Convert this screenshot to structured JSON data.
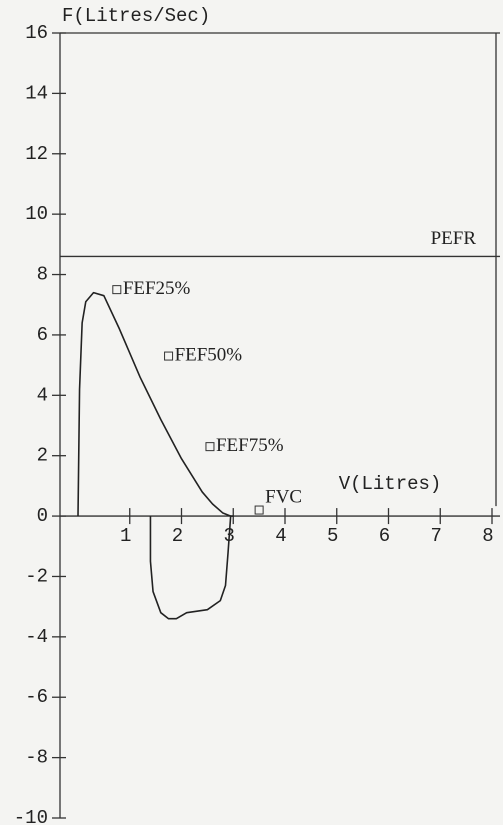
{
  "chart_data": {
    "type": "line",
    "y_label": "F(Litres/Sec)",
    "x_label": "V(Litres)",
    "x": [
      0,
      0.03,
      0.08,
      0.15,
      0.3,
      0.5,
      0.8,
      1.2,
      1.6,
      2.0,
      2.4,
      2.6,
      2.8,
      2.95,
      3.0,
      2.95,
      2.9,
      2.85,
      2.75,
      2.5,
      2.3,
      2.1,
      1.9,
      1.75,
      1.6,
      1.45,
      1.4,
      1.4
    ],
    "series": [
      {
        "color": "#222222",
        "values": [
          0,
          4.2,
          6.4,
          7.1,
          7.4,
          7.3,
          6.2,
          4.6,
          3.2,
          1.9,
          0.8,
          0.4,
          0.1,
          0,
          0,
          0,
          -1.2,
          -2.3,
          -2.8,
          -3.1,
          -3.15,
          -3.2,
          -3.4,
          -3.4,
          -3.2,
          -2.5,
          -1.5,
          0
        ]
      }
    ],
    "xlim": [
      0,
      8
    ],
    "xticks": [
      1,
      2,
      3,
      4,
      5,
      6,
      7,
      8
    ],
    "ylim": [
      -10,
      16
    ],
    "yticks": [
      16,
      14,
      12,
      10,
      8,
      6,
      4,
      2,
      0,
      -2,
      -4,
      -6,
      -8,
      -10
    ],
    "reference": {
      "label": "PEFR",
      "value": 8.6
    },
    "annotations": [
      {
        "text": "FEF25%",
        "x": 0.75,
        "y": 7.5
      },
      {
        "text": "FEF50%",
        "x": 1.75,
        "y": 5.3
      },
      {
        "text": "FEF75%",
        "x": 2.55,
        "y": 2.3
      },
      {
        "text": "FVC",
        "x": 3.5,
        "y": 0.2
      }
    ]
  }
}
